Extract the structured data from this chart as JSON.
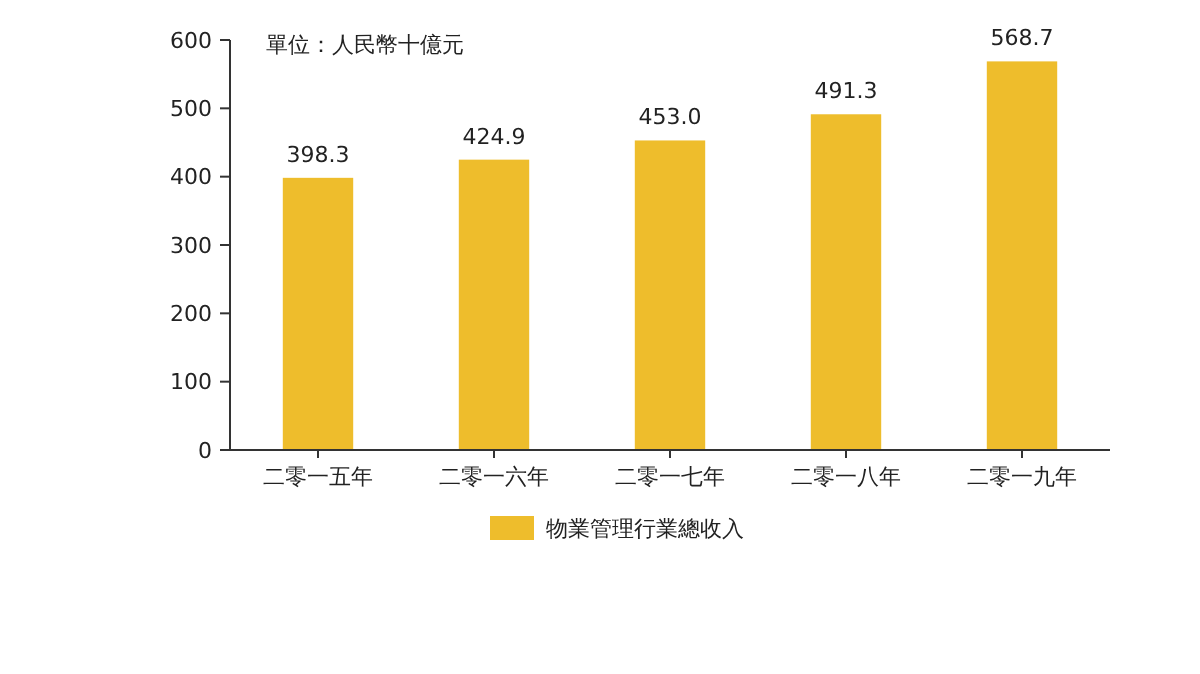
{
  "chart_data": {
    "type": "bar",
    "categories": [
      "二零一五年",
      "二零一六年",
      "二零一七年",
      "二零一八年",
      "二零一九年"
    ],
    "series": [
      {
        "name": "物業管理行業總收入",
        "color": "#eebd2c",
        "values": [
          398.3,
          424.9,
          453.0,
          491.3,
          568.7
        ]
      }
    ],
    "value_labels": [
      "398.3",
      "424.9",
      "453.0",
      "491.3",
      "568.7"
    ],
    "ylim": [
      0,
      600
    ],
    "yticks": [
      0,
      100,
      200,
      300,
      400,
      500,
      600
    ],
    "grid": false,
    "legend": "bottom",
    "annotations": [
      "單位：人民幣十億元"
    ]
  }
}
